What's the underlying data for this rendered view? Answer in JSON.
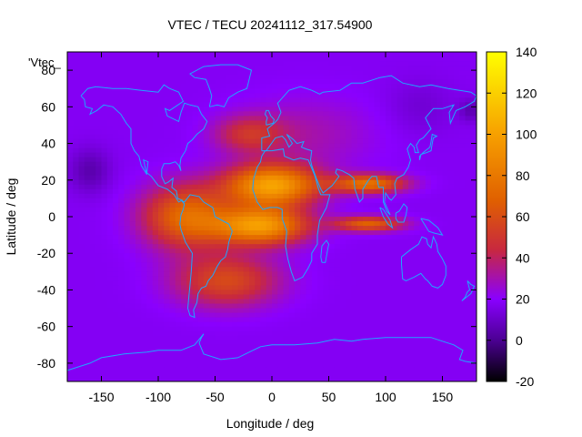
{
  "chart_data": {
    "type": "heatmap",
    "title": "VTEC / TECU 20241112_317.54900",
    "xlabel": "Longitude / deg",
    "ylabel": "Latitude / deg",
    "plot_key": "'Vtec_",
    "xlim": [
      -180,
      180
    ],
    "ylim": [
      -90,
      90
    ],
    "xticks": [
      -150,
      -100,
      -50,
      0,
      50,
      100,
      150
    ],
    "yticks": [
      -80,
      -60,
      -40,
      -20,
      0,
      20,
      40,
      60,
      80
    ],
    "colorbar": {
      "min": -20,
      "max": 140,
      "ticks": [
        -20,
        0,
        20,
        40,
        60,
        80,
        100,
        120,
        140
      ],
      "palette": [
        "#000000",
        "#4b0092",
        "#8a00ff",
        "#c8283f",
        "#e06000",
        "#f7a000",
        "#ffff00"
      ]
    },
    "background_tecu": 18,
    "features": [
      {
        "name": "equatorial-anomaly-north-peak",
        "lon": 0,
        "lat": 17,
        "peak_tecu": 100
      },
      {
        "name": "equatorial-anomaly-south-peak",
        "lon": -10,
        "lat": -5,
        "peak_tecu": 98
      },
      {
        "name": "equatorial-anomaly-western-extension",
        "lon": -75,
        "lat": 0,
        "peak_tecu": 80
      },
      {
        "name": "northern-crest-east-extension",
        "lon": 85,
        "lat": 18,
        "peak_tecu": 80
      },
      {
        "name": "southern-crest-east-extension",
        "lon": 85,
        "lat": -4,
        "peak_tecu": 70
      },
      {
        "name": "south-atlantic-enhancement",
        "lon": -40,
        "lat": -35,
        "peak_tecu": 62
      },
      {
        "name": "north-pacific-minimum",
        "lon": -160,
        "lat": 25,
        "peak_tecu": 5
      },
      {
        "name": "arctic-minimum-east",
        "lon": 175,
        "lat": 58,
        "peak_tecu": 2
      }
    ]
  },
  "coastlines": {
    "north-america": [
      [
        -168,
        66
      ],
      [
        -162,
        70
      ],
      [
        -155,
        71
      ],
      [
        -140,
        70
      ],
      [
        -128,
        70
      ],
      [
        -115,
        69
      ],
      [
        -100,
        68
      ],
      [
        -95,
        72
      ],
      [
        -90,
        70
      ],
      [
        -82,
        68
      ],
      [
        -78,
        63
      ],
      [
        -90,
        58
      ],
      [
        -94,
        59
      ],
      [
        -92,
        55
      ],
      [
        -82,
        52
      ],
      [
        -80,
        57
      ],
      [
        -77,
        62
      ],
      [
        -72,
        61
      ],
      [
        -65,
        60
      ],
      [
        -62,
        56
      ],
      [
        -57,
        52
      ],
      [
        -60,
        48
      ],
      [
        -66,
        45
      ],
      [
        -70,
        42
      ],
      [
        -74,
        40
      ],
      [
        -76,
        36
      ],
      [
        -80,
        32
      ],
      [
        -81,
        28
      ],
      [
        -80,
        25
      ],
      [
        -82,
        28
      ],
      [
        -85,
        30
      ],
      [
        -90,
        29
      ],
      [
        -95,
        29
      ],
      [
        -97,
        26
      ],
      [
        -97,
        22
      ],
      [
        -94,
        18
      ],
      [
        -91,
        19
      ],
      [
        -87,
        21
      ],
      [
        -88,
        16
      ],
      [
        -84,
        14
      ],
      [
        -83,
        10
      ],
      [
        -79,
        9
      ],
      [
        -82,
        8
      ],
      [
        -86,
        12
      ],
      [
        -92,
        15
      ],
      [
        -100,
        17
      ],
      [
        -106,
        22
      ],
      [
        -110,
        24
      ],
      [
        -109,
        30
      ],
      [
        -113,
        31
      ],
      [
        -110,
        23
      ],
      [
        -115,
        28
      ],
      [
        -117,
        33
      ],
      [
        -121,
        36
      ],
      [
        -124,
        40
      ],
      [
        -124,
        48
      ],
      [
        -128,
        51
      ],
      [
        -133,
        56
      ],
      [
        -140,
        60
      ],
      [
        -148,
        61
      ],
      [
        -154,
        58
      ],
      [
        -160,
        56
      ],
      [
        -158,
        59
      ],
      [
        -164,
        60
      ],
      [
        -165,
        64
      ],
      [
        -168,
        66
      ]
    ],
    "south-america": [
      [
        -80,
        9
      ],
      [
        -77,
        8
      ],
      [
        -72,
        12
      ],
      [
        -64,
        11
      ],
      [
        -60,
        8
      ],
      [
        -52,
        5
      ],
      [
        -50,
        0
      ],
      [
        -44,
        -2
      ],
      [
        -38,
        -4
      ],
      [
        -35,
        -8
      ],
      [
        -38,
        -14
      ],
      [
        -39,
        -18
      ],
      [
        -41,
        -22
      ],
      [
        -45,
        -24
      ],
      [
        -48,
        -27
      ],
      [
        -52,
        -32
      ],
      [
        -56,
        -35
      ],
      [
        -58,
        -38
      ],
      [
        -62,
        -39
      ],
      [
        -65,
        -42
      ],
      [
        -66,
        -47
      ],
      [
        -69,
        -51
      ],
      [
        -68,
        -55
      ],
      [
        -72,
        -54
      ],
      [
        -74,
        -50
      ],
      [
        -73,
        -43
      ],
      [
        -72,
        -37
      ],
      [
        -71,
        -30
      ],
      [
        -70,
        -20
      ],
      [
        -76,
        -14
      ],
      [
        -80,
        -7
      ],
      [
        -81,
        -4
      ],
      [
        -80,
        1
      ],
      [
        -78,
        4
      ],
      [
        -77,
        7
      ],
      [
        -80,
        9
      ]
    ],
    "africa": [
      [
        -17,
        15
      ],
      [
        -16,
        21
      ],
      [
        -13,
        27
      ],
      [
        -10,
        30
      ],
      [
        -9,
        33
      ],
      [
        -6,
        36
      ],
      [
        0,
        36
      ],
      [
        10,
        37
      ],
      [
        11,
        33
      ],
      [
        19,
        31
      ],
      [
        25,
        32
      ],
      [
        32,
        31
      ],
      [
        34,
        28
      ],
      [
        38,
        22
      ],
      [
        41,
        15
      ],
      [
        43,
        12
      ],
      [
        51,
        12
      ],
      [
        48,
        5
      ],
      [
        42,
        -2
      ],
      [
        40,
        -10
      ],
      [
        40,
        -15
      ],
      [
        35,
        -20
      ],
      [
        35,
        -24
      ],
      [
        32,
        -28
      ],
      [
        27,
        -33
      ],
      [
        20,
        -35
      ],
      [
        17,
        -30
      ],
      [
        14,
        -23
      ],
      [
        12,
        -16
      ],
      [
        13,
        -8
      ],
      [
        9,
        -1
      ],
      [
        9,
        4
      ],
      [
        5,
        5
      ],
      [
        -2,
        5
      ],
      [
        -8,
        4
      ],
      [
        -13,
        8
      ],
      [
        -17,
        15
      ]
    ],
    "europe-asia": [
      [
        -9,
        36
      ],
      [
        -9,
        43
      ],
      [
        -2,
        44
      ],
      [
        -4,
        48
      ],
      [
        2,
        51
      ],
      [
        5,
        53
      ],
      [
        8,
        57
      ],
      [
        5,
        62
      ],
      [
        15,
        69
      ],
      [
        25,
        71
      ],
      [
        35,
        69
      ],
      [
        42,
        67
      ],
      [
        45,
        68
      ],
      [
        60,
        69
      ],
      [
        70,
        73
      ],
      [
        80,
        73
      ],
      [
        95,
        76
      ],
      [
        105,
        77
      ],
      [
        115,
        73
      ],
      [
        130,
        71
      ],
      [
        140,
        72
      ],
      [
        155,
        70
      ],
      [
        165,
        69
      ],
      [
        175,
        68
      ],
      [
        180,
        66
      ],
      [
        178,
        63
      ],
      [
        170,
        60
      ],
      [
        162,
        58
      ],
      [
        157,
        51
      ],
      [
        156,
        57
      ],
      [
        160,
        61
      ],
      [
        150,
        59
      ],
      [
        142,
        59
      ],
      [
        135,
        54
      ],
      [
        140,
        48
      ],
      [
        133,
        43
      ],
      [
        130,
        42
      ],
      [
        127,
        39
      ],
      [
        129,
        35
      ],
      [
        126,
        35
      ],
      [
        125,
        38
      ],
      [
        122,
        40
      ],
      [
        119,
        37
      ],
      [
        122,
        31
      ],
      [
        120,
        27
      ],
      [
        116,
        23
      ],
      [
        110,
        21
      ],
      [
        108,
        18
      ],
      [
        109,
        12
      ],
      [
        105,
        9
      ],
      [
        103,
        10
      ],
      [
        100,
        13
      ],
      [
        99,
        8
      ],
      [
        104,
        1
      ],
      [
        101,
        3
      ],
      [
        98,
        8
      ],
      [
        98,
        16
      ],
      [
        94,
        16
      ],
      [
        92,
        22
      ],
      [
        88,
        22
      ],
      [
        85,
        20
      ],
      [
        80,
        15
      ],
      [
        80,
        10
      ],
      [
        77,
        8
      ],
      [
        73,
        15
      ],
      [
        72,
        21
      ],
      [
        68,
        23
      ],
      [
        62,
        25
      ],
      [
        57,
        26
      ],
      [
        56,
        24
      ],
      [
        59,
        22
      ],
      [
        53,
        17
      ],
      [
        45,
        13
      ],
      [
        43,
        15
      ],
      [
        39,
        21
      ],
      [
        35,
        28
      ],
      [
        34,
        31
      ],
      [
        35,
        36
      ],
      [
        30,
        37
      ],
      [
        26,
        38
      ],
      [
        28,
        41
      ],
      [
        22,
        40
      ],
      [
        19,
        42
      ],
      [
        13,
        45
      ],
      [
        16,
        42
      ],
      [
        18,
        40
      ],
      [
        15,
        38
      ],
      [
        12,
        42
      ],
      [
        9,
        44
      ],
      [
        3,
        43
      ],
      [
        -5,
        36
      ],
      [
        -9,
        36
      ]
    ],
    "great-britain": [
      [
        -5,
        50
      ],
      [
        1,
        51
      ],
      [
        2,
        53
      ],
      [
        -1,
        55
      ],
      [
        -3,
        58
      ],
      [
        -5,
        58
      ],
      [
        -6,
        56
      ],
      [
        -4,
        54
      ],
      [
        -5,
        52
      ],
      [
        -5,
        50
      ]
    ],
    "madagascar": [
      [
        44,
        -25
      ],
      [
        47,
        -25
      ],
      [
        49,
        -18
      ],
      [
        50,
        -15
      ],
      [
        48,
        -13
      ],
      [
        44,
        -16
      ],
      [
        43,
        -22
      ],
      [
        44,
        -25
      ]
    ],
    "australia": [
      [
        114,
        -22
      ],
      [
        122,
        -18
      ],
      [
        129,
        -15
      ],
      [
        132,
        -11
      ],
      [
        136,
        -12
      ],
      [
        137,
        -15
      ],
      [
        140,
        -17
      ],
      [
        142,
        -11
      ],
      [
        145,
        -15
      ],
      [
        146,
        -19
      ],
      [
        150,
        -23
      ],
      [
        153,
        -27
      ],
      [
        153,
        -32
      ],
      [
        150,
        -37
      ],
      [
        146,
        -39
      ],
      [
        141,
        -38
      ],
      [
        137,
        -35
      ],
      [
        135,
        -34
      ],
      [
        131,
        -31
      ],
      [
        125,
        -33
      ],
      [
        118,
        -35
      ],
      [
        115,
        -34
      ],
      [
        114,
        -26
      ],
      [
        114,
        -22
      ]
    ],
    "greenland": [
      [
        -55,
        60
      ],
      [
        -48,
        61
      ],
      [
        -42,
        60
      ],
      [
        -38,
        65
      ],
      [
        -30,
        68
      ],
      [
        -22,
        70
      ],
      [
        -20,
        75
      ],
      [
        -18,
        80
      ],
      [
        -30,
        83
      ],
      [
        -45,
        83
      ],
      [
        -60,
        82
      ],
      [
        -72,
        78
      ],
      [
        -68,
        76
      ],
      [
        -58,
        75
      ],
      [
        -55,
        70
      ],
      [
        -53,
        66
      ],
      [
        -55,
        60
      ]
    ],
    "japan": [
      [
        130,
        31
      ],
      [
        131,
        34
      ],
      [
        136,
        35
      ],
      [
        140,
        36
      ],
      [
        141,
        40
      ],
      [
        142,
        43
      ],
      [
        145,
        44
      ],
      [
        141,
        45
      ],
      [
        140,
        41
      ],
      [
        139,
        38
      ],
      [
        137,
        37
      ],
      [
        133,
        35
      ],
      [
        130,
        33
      ],
      [
        130,
        31
      ]
    ],
    "borneo": [
      [
        109,
        2
      ],
      [
        112,
        3
      ],
      [
        116,
        7
      ],
      [
        119,
        5
      ],
      [
        118,
        1
      ],
      [
        116,
        -3
      ],
      [
        111,
        -3
      ],
      [
        109,
        -1
      ],
      [
        109,
        2
      ]
    ],
    "sumatra": [
      [
        95,
        5
      ],
      [
        98,
        4
      ],
      [
        104,
        -2
      ],
      [
        106,
        -6
      ],
      [
        102,
        -4
      ],
      [
        98,
        0
      ],
      [
        95,
        5
      ]
    ],
    "new-guinea": [
      [
        131,
        -1
      ],
      [
        138,
        -2
      ],
      [
        146,
        -6
      ],
      [
        150,
        -10
      ],
      [
        143,
        -9
      ],
      [
        138,
        -8
      ],
      [
        134,
        -4
      ],
      [
        131,
        -1
      ]
    ],
    "new-zealand": [
      [
        172,
        -35
      ],
      [
        175,
        -37
      ],
      [
        178,
        -38
      ],
      [
        175,
        -42
      ],
      [
        171,
        -44
      ],
      [
        167,
        -46
      ],
      [
        170,
        -44
      ],
      [
        172,
        -41
      ],
      [
        174,
        -40
      ],
      [
        172,
        -35
      ]
    ],
    "antarctica": [
      [
        -180,
        -84
      ],
      [
        -160,
        -80
      ],
      [
        -150,
        -77
      ],
      [
        -130,
        -75
      ],
      [
        -110,
        -74
      ],
      [
        -100,
        -73
      ],
      [
        -80,
        -73
      ],
      [
        -68,
        -70
      ],
      [
        -60,
        -64
      ],
      [
        -62,
        -66
      ],
      [
        -64,
        -69
      ],
      [
        -60,
        -75
      ],
      [
        -45,
        -78
      ],
      [
        -30,
        -77
      ],
      [
        -20,
        -74
      ],
      [
        -10,
        -71
      ],
      [
        0,
        -70
      ],
      [
        20,
        -70
      ],
      [
        40,
        -69
      ],
      [
        55,
        -67
      ],
      [
        70,
        -68
      ],
      [
        80,
        -67
      ],
      [
        100,
        -66
      ],
      [
        120,
        -66
      ],
      [
        140,
        -66
      ],
      [
        150,
        -68
      ],
      [
        160,
        -70
      ],
      [
        168,
        -73
      ],
      [
        165,
        -78
      ],
      [
        170,
        -79
      ],
      [
        180,
        -80
      ]
    ]
  }
}
